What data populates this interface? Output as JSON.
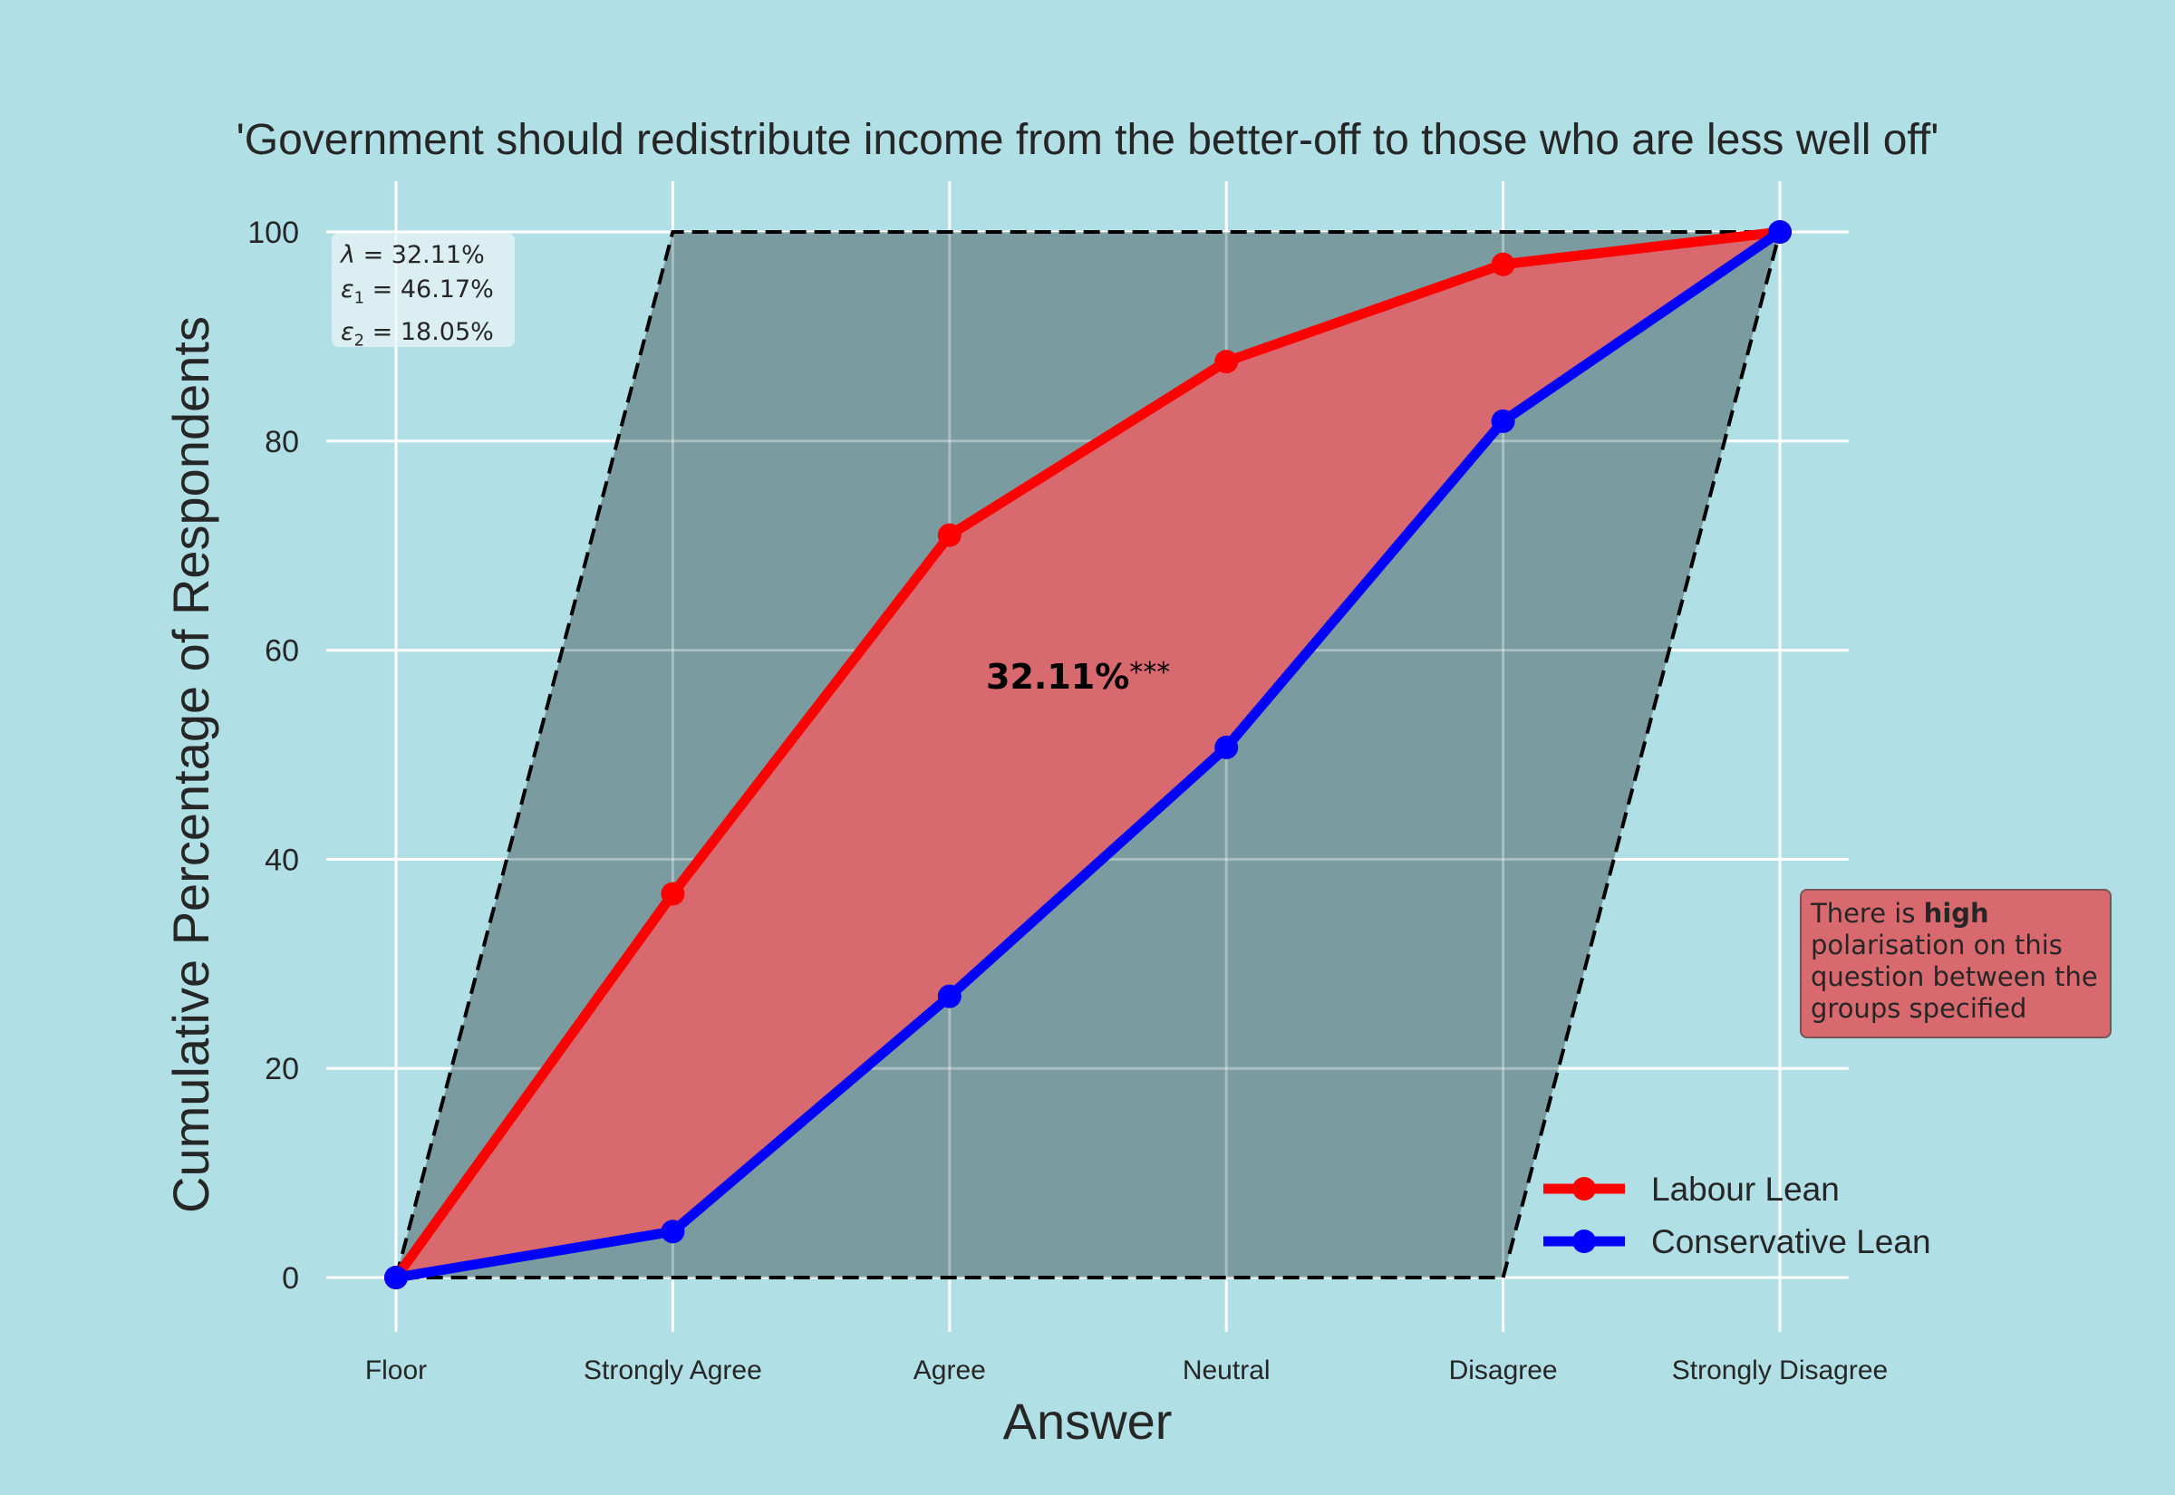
{
  "chart_data": {
    "type": "line",
    "title": "'Government should redistribute income from the better-off to those who are less well off'",
    "xlabel": "Answer",
    "ylabel": "Cumulative Percentage of Respondents",
    "categories": [
      "Floor",
      "Strongly Agree",
      "Agree",
      "Neutral",
      "Disagree",
      "Strongly Disagree"
    ],
    "ylim": [
      0,
      100
    ],
    "yticks": [
      "0",
      "20",
      "40",
      "60",
      "80",
      "100"
    ],
    "series": [
      {
        "name": "Labour Lean",
        "color": "#ff0000",
        "values": [
          0,
          36.7,
          71.0,
          87.6,
          96.9,
          100
        ]
      },
      {
        "name": "Conservative Lean",
        "color": "#0000ff",
        "values": [
          0,
          4.4,
          26.9,
          50.7,
          81.9,
          100
        ]
      }
    ],
    "boundary": {
      "upper": [
        0,
        100,
        100,
        100,
        100,
        100
      ],
      "lower": [
        0,
        0,
        0,
        0,
        0,
        100
      ]
    },
    "stats": {
      "lambda": "32.11%",
      "epsilon1": "46.17%",
      "epsilon2": "18.05%"
    },
    "center_annotation": {
      "value": "32.11%",
      "significance": "***"
    },
    "note": {
      "prefix": "There is ",
      "bold": "high",
      "rest": "polarisation on this question between the groups specified"
    },
    "grid": true,
    "legend_position": "bottom-right",
    "colors": {
      "background": "#b0dfe5",
      "boundary_fill": "#7a9ba0",
      "between_fill": "#d86a6f"
    }
  }
}
